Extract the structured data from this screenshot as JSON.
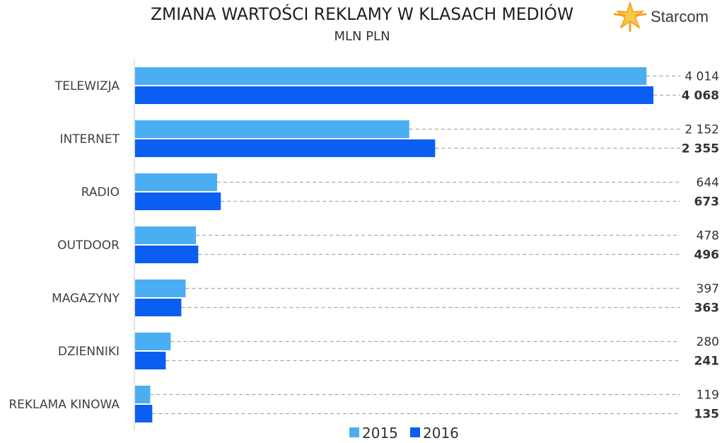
{
  "chart_data": {
    "type": "bar",
    "orientation": "horizontal",
    "title": "ZMIANA WARTOŚCI REKLAMY W KLASACH MEDIÓW",
    "subtitle": "MLN PLN",
    "categories": [
      "TELEWIZJA",
      "INTERNET",
      "RADIO",
      "OUTDOOR",
      "MAGAZYNY",
      "DZIENNIKI",
      "REKLAMA KINOWA"
    ],
    "series": [
      {
        "name": "2015",
        "color": "#4aaef2",
        "values": [
          4014,
          2152,
          644,
          478,
          397,
          280,
          119
        ],
        "labels": [
          "4 014",
          "2 152",
          "644",
          "478",
          "397",
          "280",
          "119"
        ]
      },
      {
        "name": "2016",
        "color": "#0a5ff2",
        "values": [
          4068,
          2355,
          673,
          496,
          363,
          241,
          135
        ],
        "labels": [
          "4 068",
          "2 355",
          "673",
          "496",
          "363",
          "241",
          "135"
        ]
      }
    ],
    "legend": "bottom-center",
    "value_labels": "right, connected by dashed leader lines",
    "grid": false
  },
  "logo": {
    "text": "Starcom",
    "icon": "star-burst-icon",
    "colors": [
      "#f5a623",
      "#f7c948"
    ]
  }
}
